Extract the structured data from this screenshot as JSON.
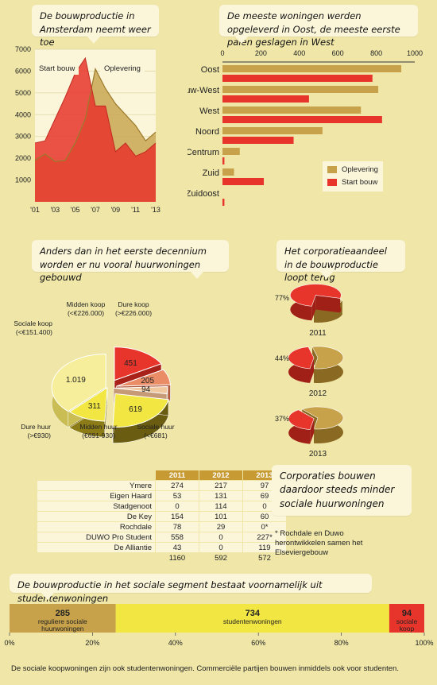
{
  "colors": {
    "background": "#efe6a8",
    "oplevering": "#c7a24a",
    "start_bouw": "#e8352b",
    "sociaal": "#f2e642",
    "bubble": "#fbf6da",
    "table_head": "#c79a33"
  },
  "chart1": {
    "title": "De bouwproductie in Amsterdam neemt weer toe",
    "legend_start": "Start bouw",
    "legend_oplevering": "Oplevering"
  },
  "chart2": {
    "title": "De meeste woningen werden opgeleverd in Oost, de meeste eerste palen geslagen in West",
    "legend_oplevering": "Oplevering",
    "legend_start": "Start bouw"
  },
  "chart3": {
    "title": "Anders dan in het eerste decennium worden er nu vooral huurwoningen gebouwd"
  },
  "chart4": {
    "title": "Het corporatieaandeel in de bouwproductie loopt terug"
  },
  "corporaties": {
    "title": "Corporaties bouwen daardoor steeds minder sociale huurwoningen",
    "note": "* Rochdale en Duwo herontwikkelen samen het Elseviergebouw",
    "headers": [
      "2011",
      "2012",
      "2013"
    ],
    "rows": [
      {
        "name": "Ymere",
        "v": [
          "274",
          "217",
          "97"
        ]
      },
      {
        "name": "Eigen Haard",
        "v": [
          "53",
          "131",
          "69"
        ]
      },
      {
        "name": "Stadgenoot",
        "v": [
          "0",
          "114",
          "0"
        ]
      },
      {
        "name": "De Key",
        "v": [
          "154",
          "101",
          "60"
        ]
      },
      {
        "name": "Rochdale",
        "v": [
          "78",
          "29",
          "0*"
        ]
      },
      {
        "name": "DUWO Pro Student",
        "v": [
          "558",
          "0",
          "227*"
        ]
      },
      {
        "name": "De Alliantie",
        "v": [
          "43",
          "0",
          "119"
        ]
      }
    ],
    "totals": [
      "1160",
      "592",
      "572"
    ]
  },
  "chart5": {
    "title": "De bouwproductie in het sociale segment bestaat voornamelijk uit studentenwoningen",
    "footnote": "De sociale koopwoningen zijn ook studentenwoningen. Commerciële partijen bouwen inmiddels ook voor studenten."
  },
  "chart_data": [
    {
      "type": "area",
      "title": "De bouwproductie in Amsterdam neemt weer toe",
      "x": [
        2001,
        2002,
        2003,
        2004,
        2005,
        2006,
        2007,
        2008,
        2009,
        2010,
        2011,
        2012,
        2013
      ],
      "x_tick_labels": [
        "'01",
        "'03",
        "'05",
        "'07",
        "'09",
        "'11",
        "'13"
      ],
      "x_tick_values": [
        2001,
        2003,
        2005,
        2007,
        2009,
        2011,
        2013
      ],
      "ylim": [
        0,
        7000
      ],
      "y_ticks": [
        1000,
        2000,
        3000,
        4000,
        5000,
        6000,
        7000
      ],
      "series": [
        {
          "name": "Start bouw",
          "values": [
            2700,
            2800,
            3800,
            4800,
            5900,
            6600,
            4400,
            4400,
            2300,
            2700,
            2100,
            2300,
            2700
          ]
        },
        {
          "name": "Oplevering",
          "values": [
            1900,
            2200,
            1850,
            1900,
            2700,
            3800,
            6100,
            5200,
            4500,
            4000,
            3500,
            2800,
            3200
          ]
        }
      ]
    },
    {
      "type": "bar",
      "orientation": "horizontal",
      "title": "De meeste woningen werden opgeleverd in Oost, de meeste eerste palen geslagen in West",
      "categories": [
        "Oost",
        "Nieuw-West",
        "West",
        "Noord",
        "Centrum",
        "Zuid",
        "Zuidoost"
      ],
      "xlim": [
        0,
        1000
      ],
      "x_ticks": [
        0,
        200,
        400,
        600,
        800,
        1000
      ],
      "series": [
        {
          "name": "Oplevering",
          "values": [
            930,
            810,
            720,
            520,
            90,
            60,
            0
          ]
        },
        {
          "name": "Start bouw",
          "values": [
            780,
            450,
            830,
            370,
            10,
            215,
            10
          ]
        }
      ]
    },
    {
      "type": "pie",
      "title": "Anders dan in het eerste decennium worden er nu vooral huurwoningen gebouwd",
      "slices": [
        {
          "label": "Dure koop",
          "sublabel": "(>€226.000)",
          "value": 451
        },
        {
          "label": "Midden koop",
          "sublabel": "(<€226.000)",
          "value": 205
        },
        {
          "label": "Sociale koop",
          "sublabel": "(<€151.400)",
          "value": 94
        },
        {
          "label": "Dure huur",
          "sublabel": "(>€930)",
          "value": 619
        },
        {
          "label": "Midden huur",
          "sublabel": "(€691-930)",
          "value": 311
        },
        {
          "label": "Sociale huur",
          "sublabel": "(<€681)",
          "value": 1019
        }
      ],
      "value_labels": [
        "451",
        "205",
        "94",
        "619",
        "311",
        "1.019"
      ]
    },
    {
      "type": "pie",
      "title": "Het corporatieaandeel in de bouwproductie loopt terug",
      "pies": [
        {
          "year": "2011",
          "share": 77,
          "share_label": "77%"
        },
        {
          "year": "2012",
          "share": 44,
          "share_label": "44%"
        },
        {
          "year": "2013",
          "share": 37,
          "share_label": "37%"
        }
      ]
    },
    {
      "type": "bar",
      "orientation": "stacked-horizontal",
      "title": "De bouwproductie in het sociale segment bestaat voornamelijk uit studentenwoningen",
      "segments": [
        {
          "value": 285,
          "value_label": "285",
          "label": "reguliere sociale huurwoningen"
        },
        {
          "value": 734,
          "value_label": "734",
          "label": "studentenwoningen"
        },
        {
          "value": 94,
          "value_label": "94",
          "label": "sociale koop"
        }
      ],
      "x_ticks": [
        "0%",
        "20%",
        "40%",
        "60%",
        "80%",
        "100%"
      ]
    }
  ]
}
